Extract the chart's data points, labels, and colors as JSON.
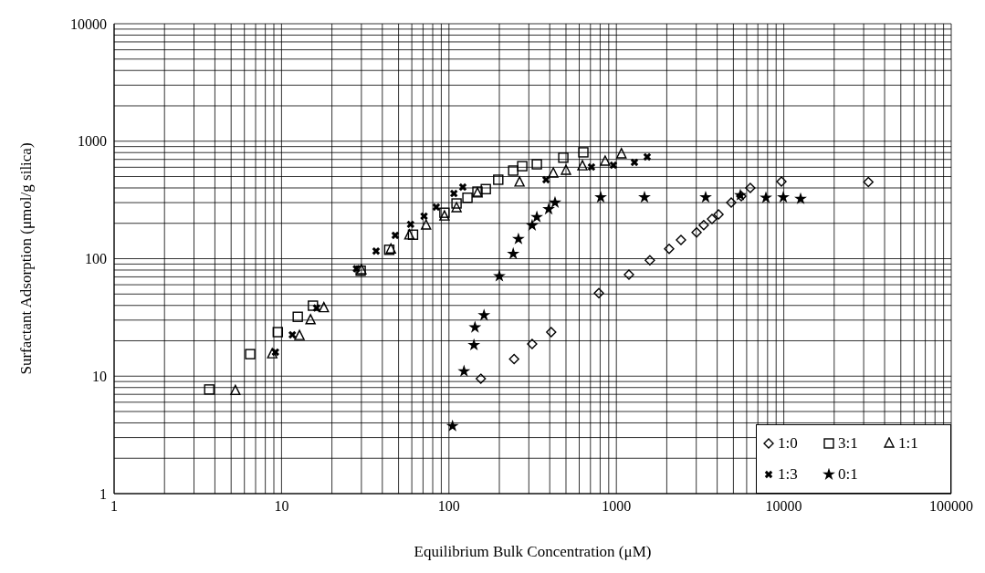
{
  "chart_data": {
    "type": "scatter",
    "xlabel": "Equilibrium Bulk Concentration (μM)",
    "ylabel": "Surfactant Adsorption (μmol/g silica)",
    "log": "xy",
    "grid": true,
    "legend": "bottom right",
    "xlim": [
      1,
      100000
    ],
    "ylim": [
      1,
      10000
    ],
    "xticks": [
      1,
      {
        "value": 2,
        "label": null
      },
      {
        "value": 3,
        "label": null
      },
      {
        "value": 4,
        "label": null
      },
      {
        "value": 5,
        "label": null
      },
      {
        "value": 6,
        "label": null
      },
      {
        "value": 7,
        "label": null
      },
      {
        "value": 8,
        "label": null
      },
      {
        "value": 9,
        "label": null
      },
      10,
      {
        "value": 20,
        "label": null
      },
      {
        "value": 30,
        "label": null
      },
      {
        "value": 40,
        "label": null
      },
      {
        "value": 50,
        "label": null
      },
      {
        "value": 60,
        "label": null
      },
      {
        "value": 70,
        "label": null
      },
      {
        "value": 80,
        "label": null
      },
      {
        "value": 90,
        "label": null
      },
      100,
      {
        "value": 200,
        "label": null
      },
      {
        "value": 300,
        "label": null
      },
      {
        "value": 400,
        "label": null
      },
      {
        "value": 500,
        "label": null
      },
      {
        "value": 600,
        "label": null
      },
      {
        "value": 700,
        "label": null
      },
      {
        "value": 800,
        "label": null
      },
      {
        "value": 900,
        "label": null
      },
      1000,
      {
        "value": 2000,
        "label": null
      },
      {
        "value": 3000,
        "label": null
      },
      {
        "value": 4000,
        "label": null
      },
      {
        "value": 5000,
        "label": null
      },
      {
        "value": 6000,
        "label": null
      },
      {
        "value": 7000,
        "label": null
      },
      {
        "value": 8000,
        "label": null
      },
      {
        "value": 9000,
        "label": null
      },
      10000,
      {
        "value": 20000,
        "label": null
      },
      {
        "value": 30000,
        "label": null
      },
      {
        "value": 40000,
        "label": null
      },
      {
        "value": 50000,
        "label": null
      },
      {
        "value": 60000,
        "label": null
      },
      {
        "value": 70000,
        "label": null
      },
      {
        "value": 80000,
        "label": null
      },
      {
        "value": 90000,
        "label": null
      },
      100000
    ],
    "yticks": [
      1,
      {
        "value": 2,
        "label": null
      },
      {
        "value": 3,
        "label": null
      },
      {
        "value": 4,
        "label": null
      },
      {
        "value": 5,
        "label": null
      },
      {
        "value": 6,
        "label": null
      },
      {
        "value": 7,
        "label": null
      },
      {
        "value": 8,
        "label": null
      },
      {
        "value": 9,
        "label": null
      },
      10,
      {
        "value": 20,
        "label": null
      },
      {
        "value": 30,
        "label": null
      },
      {
        "value": 40,
        "label": null
      },
      {
        "value": 50,
        "label": null
      },
      {
        "value": 60,
        "label": null
      },
      {
        "value": 70,
        "label": null
      },
      {
        "value": 80,
        "label": null
      },
      {
        "value": 90,
        "label": null
      },
      100,
      {
        "value": 200,
        "label": null
      },
      {
        "value": 300,
        "label": null
      },
      {
        "value": 400,
        "label": null
      },
      {
        "value": 500,
        "label": null
      },
      {
        "value": 600,
        "label": null
      },
      {
        "value": 700,
        "label": null
      },
      {
        "value": 800,
        "label": null
      },
      {
        "value": 900,
        "label": null
      },
      1000,
      {
        "value": 2000,
        "label": null
      },
      {
        "value": 3000,
        "label": null
      },
      {
        "value": 4000,
        "label": null
      },
      {
        "value": 5000,
        "label": null
      },
      {
        "value": 6000,
        "label": null
      },
      {
        "value": 7000,
        "label": null
      },
      {
        "value": 8000,
        "label": null
      },
      {
        "value": 9000,
        "label": null
      },
      10000
    ],
    "series": [
      {
        "name": "1:0",
        "color": "#000000",
        "marker": "diamond",
        "x": [
          155,
          245,
          314,
          408,
          786,
          1189,
          1585,
          2066,
          2432,
          3013,
          3325,
          3727,
          4074,
          4853,
          5572,
          6310,
          9680,
          32000
        ],
        "values": [
          9.5,
          14,
          18.8,
          23.7,
          51,
          73,
          97,
          121,
          144,
          167,
          193,
          218,
          238,
          300,
          340,
          400,
          453,
          450
        ]
      },
      {
        "name": "3:1",
        "color": "#000000",
        "marker": "square",
        "x": [
          3.7,
          6.5,
          9.5,
          12.5,
          15.4,
          29.7,
          44,
          61,
          94,
          111,
          129,
          148,
          166,
          197,
          242,
          274,
          335,
          482,
          635
        ],
        "values": [
          7.7,
          15.4,
          23.7,
          32,
          39.8,
          79,
          119,
          160,
          246,
          295,
          330,
          372,
          391,
          470,
          562,
          613,
          636,
          724,
          804
        ]
      },
      {
        "name": "1:1",
        "color": "#000000",
        "marker": "triangle",
        "x": [
          5.3,
          8.8,
          12.8,
          14.9,
          17.9,
          30,
          45,
          58,
          73,
          94,
          111,
          148,
          264,
          420,
          500,
          627,
          857,
          1072
        ],
        "values": [
          7.5,
          15.4,
          22,
          30,
          38,
          80,
          120,
          158,
          192,
          229,
          270,
          360,
          446,
          532,
          562,
          613,
          671,
          776
        ]
      },
      {
        "name": "1:3",
        "color": "#000000",
        "marker": "cross",
        "x": [
          9.2,
          11.6,
          16.2,
          28,
          36.7,
          47.8,
          59,
          71,
          84,
          107,
          121,
          380,
          710,
          960,
          1282,
          1528
        ],
        "values": [
          16,
          22.5,
          38,
          82,
          116,
          158,
          196,
          230,
          275,
          359,
          407,
          470,
          603,
          625,
          660,
          735
        ]
      },
      {
        "name": "0:1",
        "color": "#000000",
        "marker": "star",
        "x": [
          105,
          123,
          141,
          143,
          162,
          200,
          242,
          260,
          314,
          335,
          394,
          430,
          806,
          1472,
          3413,
          5500,
          7820,
          9930,
          12600
        ],
        "values": [
          3.76,
          11,
          18.4,
          26,
          33,
          71,
          110,
          147,
          192,
          226,
          264,
          300,
          333,
          333,
          333,
          347,
          330,
          333,
          323
        ]
      }
    ]
  }
}
